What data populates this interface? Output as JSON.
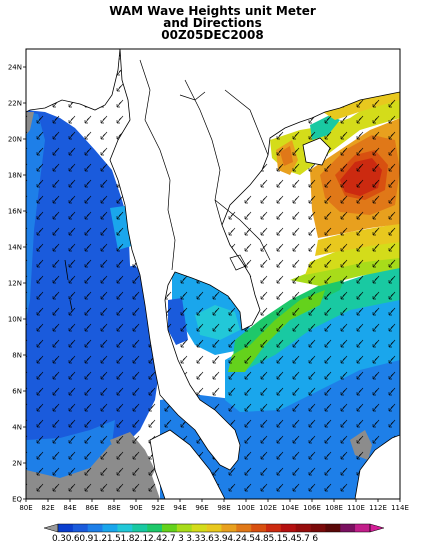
{
  "title": {
    "line1": "WAM Wave Heights unit Meter",
    "line2": "and Directions",
    "line3": "00Z05DEC2008"
  },
  "map": {
    "lon_labels": [
      "80E",
      "82E",
      "84E",
      "86E",
      "88E",
      "90E",
      "92E",
      "94E",
      "96E",
      "98E",
      "100E",
      "102E",
      "104E",
      "106E",
      "108E",
      "110E",
      "112E",
      "114E"
    ],
    "lat_labels": [
      "EQ",
      "2N",
      "4N",
      "6N",
      "8N",
      "10N",
      "12N",
      "14N",
      "16N",
      "18N",
      "20N",
      "22N",
      "24N"
    ],
    "lon_range": [
      80,
      114
    ],
    "lat_range": [
      0,
      25
    ]
  },
  "colorbar": {
    "labels_text": "0.30.60.91.21.51.82.12.42.7 3 3.33.63.94.24.54.85.15.45.7 6",
    "colors": [
      "#0a3fcf",
      "#1a5bdc",
      "#1e7fe8",
      "#1aa6ec",
      "#22c8d8",
      "#19c9a2",
      "#1ec86a",
      "#64d21c",
      "#a8dc1a",
      "#d4dc1a",
      "#e8c81e",
      "#e8a01e",
      "#e07818",
      "#d85010",
      "#cc2a10",
      "#b41010",
      "#960c0c",
      "#7a0a0a",
      "#5a0808",
      "#7a1060",
      "#c21e8a"
    ],
    "ends": [
      "#9a9a9a",
      "#d21e96"
    ]
  }
}
